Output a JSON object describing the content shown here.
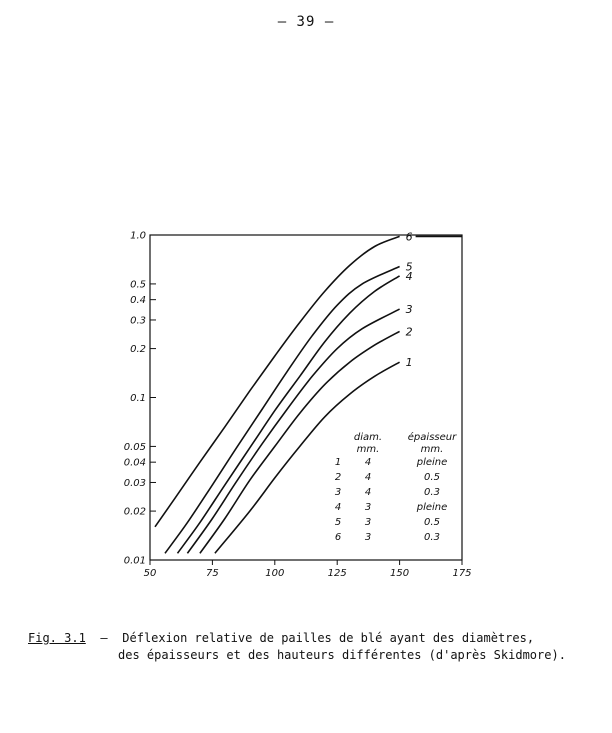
{
  "page": {
    "number": "– 39 –"
  },
  "caption": {
    "label": "Fig. 3.1",
    "dash": "–",
    "line1": "Déflexion relative de pailles de blé ayant des diamètres,",
    "line2": "des épaisseurs et des hauteurs différentes (d'après Skidmore)."
  },
  "chart_data": {
    "type": "line",
    "title": "",
    "xlabel": "",
    "ylabel": "",
    "xlim": [
      50,
      175
    ],
    "ylim": [
      0.01,
      1.0
    ],
    "yscale": "log",
    "grid": false,
    "x_ticks": [
      "50",
      "75",
      "100",
      "125",
      "150",
      "175"
    ],
    "y_ticks": [
      "0.01",
      "0.02",
      "0.03",
      "0.04",
      "0.05",
      "0.1",
      "0.2",
      "0.3",
      "0.4",
      "0.5",
      "1.0"
    ],
    "series": [
      {
        "name": "1",
        "x": [
          76,
          90,
          100,
          110,
          120,
          130,
          140,
          150
        ],
        "y": [
          0.011,
          0.02,
          0.032,
          0.05,
          0.076,
          0.105,
          0.135,
          0.165
        ]
      },
      {
        "name": "2",
        "x": [
          70,
          80,
          90,
          100,
          110,
          120,
          130,
          140,
          150
        ],
        "y": [
          0.011,
          0.018,
          0.031,
          0.05,
          0.08,
          0.12,
          0.165,
          0.21,
          0.255
        ]
      },
      {
        "name": "3",
        "x": [
          65,
          75,
          85,
          95,
          105,
          115,
          125,
          135,
          150
        ],
        "y": [
          0.011,
          0.018,
          0.031,
          0.052,
          0.085,
          0.135,
          0.2,
          0.265,
          0.35
        ]
      },
      {
        "name": "4",
        "x": [
          61,
          70,
          80,
          90,
          100,
          110,
          120,
          130,
          140,
          150
        ],
        "y": [
          0.011,
          0.017,
          0.029,
          0.049,
          0.083,
          0.135,
          0.22,
          0.33,
          0.45,
          0.56
        ]
      },
      {
        "name": "5",
        "x": [
          56,
          65,
          75,
          85,
          95,
          105,
          115,
          125,
          135,
          150
        ],
        "y": [
          0.011,
          0.017,
          0.029,
          0.05,
          0.085,
          0.145,
          0.24,
          0.37,
          0.5,
          0.64
        ]
      },
      {
        "name": "6",
        "x": [
          52,
          60,
          70,
          80,
          90,
          100,
          110,
          120,
          130,
          140,
          150
        ],
        "y": [
          0.016,
          0.024,
          0.04,
          0.066,
          0.11,
          0.18,
          0.29,
          0.45,
          0.65,
          0.85,
          0.98
        ]
      }
    ],
    "legend": {
      "placement": "bottom-right",
      "headers": {
        "num": "",
        "diam": "diam.\nmm.",
        "thick": "épaisseur\nmm."
      },
      "rows": [
        {
          "num": "1",
          "diam": "4",
          "thick": "pleine"
        },
        {
          "num": "2",
          "diam": "4",
          "thick": "0.5"
        },
        {
          "num": "3",
          "diam": "4",
          "thick": "0.3"
        },
        {
          "num": "4",
          "diam": "3",
          "thick": "pleine"
        },
        {
          "num": "5",
          "diam": "3",
          "thick": "0.5"
        },
        {
          "num": "6",
          "diam": "3",
          "thick": "0.3"
        }
      ]
    }
  }
}
